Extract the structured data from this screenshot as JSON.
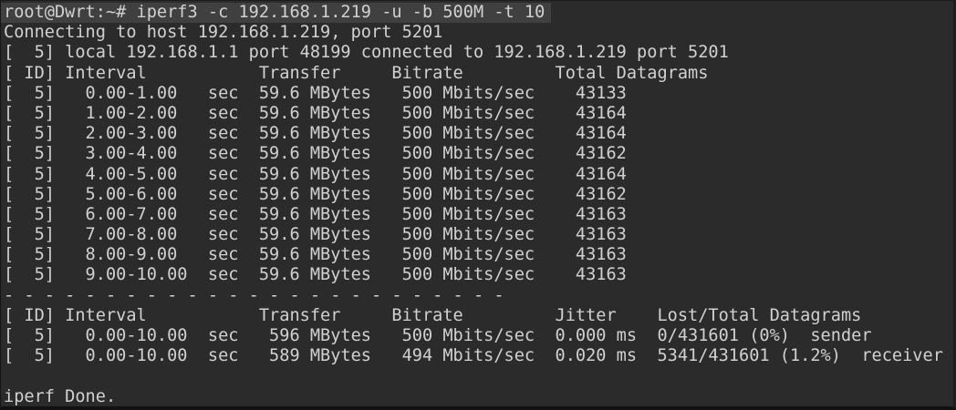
{
  "terminal": {
    "colors": {
      "background": "#2b2b2b",
      "foreground": "#d1d1d1",
      "command_highlight": "#404040"
    },
    "prompt": {
      "user_host": "root@Dwrt",
      "cwd": "~",
      "command": "iperf3 -c 192.168.1.219 -u -b 500M -t 10"
    },
    "lines": [
      "root@Dwrt:~# iperf3 -c 192.168.1.219 -u -b 500M -t 10",
      "Connecting to host 192.168.1.219, port 5201",
      "[  5] local 192.168.1.1 port 48199 connected to 192.168.1.219 port 5201",
      "[ ID] Interval           Transfer     Bitrate         Total Datagrams",
      "[  5]   0.00-1.00   sec  59.6 MBytes   500 Mbits/sec    43133",
      "[  5]   1.00-2.00   sec  59.6 MBytes   500 Mbits/sec    43164",
      "[  5]   2.00-3.00   sec  59.6 MBytes   500 Mbits/sec    43164",
      "[  5]   3.00-4.00   sec  59.6 MBytes   500 Mbits/sec    43162",
      "[  5]   4.00-5.00   sec  59.6 MBytes   500 Mbits/sec    43164",
      "[  5]   5.00-6.00   sec  59.6 MBytes   500 Mbits/sec    43162",
      "[  5]   6.00-7.00   sec  59.6 MBytes   500 Mbits/sec    43163",
      "[  5]   7.00-8.00   sec  59.6 MBytes   500 Mbits/sec    43163",
      "[  5]   8.00-9.00   sec  59.6 MBytes   500 Mbits/sec    43163",
      "[  5]   9.00-10.00  sec  59.6 MBytes   500 Mbits/sec    43163",
      "- - - - - - - - - - - - - - - - - - - - - - - - -",
      "[ ID] Interval           Transfer     Bitrate         Jitter    Lost/Total Datagrams",
      "[  5]   0.00-10.00  sec   596 MBytes   500 Mbits/sec  0.000 ms  0/431601 (0%)  sender",
      "[  5]   0.00-10.00  sec   589 MBytes   494 Mbits/sec  0.020 ms  5341/431601 (1.2%)  receiver",
      "",
      "iperf Done."
    ],
    "interval_report": {
      "columns": [
        "ID",
        "Interval",
        "Transfer",
        "Bitrate",
        "Total Datagrams"
      ],
      "rows": [
        {
          "id": 5,
          "interval": "0.00-1.00",
          "unit": "sec",
          "transfer": "59.6 MBytes",
          "bitrate": "500 Mbits/sec",
          "datagrams": 43133
        },
        {
          "id": 5,
          "interval": "1.00-2.00",
          "unit": "sec",
          "transfer": "59.6 MBytes",
          "bitrate": "500 Mbits/sec",
          "datagrams": 43164
        },
        {
          "id": 5,
          "interval": "2.00-3.00",
          "unit": "sec",
          "transfer": "59.6 MBytes",
          "bitrate": "500 Mbits/sec",
          "datagrams": 43164
        },
        {
          "id": 5,
          "interval": "3.00-4.00",
          "unit": "sec",
          "transfer": "59.6 MBytes",
          "bitrate": "500 Mbits/sec",
          "datagrams": 43162
        },
        {
          "id": 5,
          "interval": "4.00-5.00",
          "unit": "sec",
          "transfer": "59.6 MBytes",
          "bitrate": "500 Mbits/sec",
          "datagrams": 43164
        },
        {
          "id": 5,
          "interval": "5.00-6.00",
          "unit": "sec",
          "transfer": "59.6 MBytes",
          "bitrate": "500 Mbits/sec",
          "datagrams": 43162
        },
        {
          "id": 5,
          "interval": "6.00-7.00",
          "unit": "sec",
          "transfer": "59.6 MBytes",
          "bitrate": "500 Mbits/sec",
          "datagrams": 43163
        },
        {
          "id": 5,
          "interval": "7.00-8.00",
          "unit": "sec",
          "transfer": "59.6 MBytes",
          "bitrate": "500 Mbits/sec",
          "datagrams": 43163
        },
        {
          "id": 5,
          "interval": "8.00-9.00",
          "unit": "sec",
          "transfer": "59.6 MBytes",
          "bitrate": "500 Mbits/sec",
          "datagrams": 43163
        },
        {
          "id": 5,
          "interval": "9.00-10.00",
          "unit": "sec",
          "transfer": "59.6 MBytes",
          "bitrate": "500 Mbits/sec",
          "datagrams": 43163
        }
      ]
    },
    "summary_report": {
      "columns": [
        "ID",
        "Interval",
        "Transfer",
        "Bitrate",
        "Jitter",
        "Lost/Total Datagrams"
      ],
      "rows": [
        {
          "id": 5,
          "interval": "0.00-10.00",
          "unit": "sec",
          "transfer": "596 MBytes",
          "bitrate": "500 Mbits/sec",
          "jitter": "0.000 ms",
          "lost_total": "0/431601 (0%)",
          "role": "sender"
        },
        {
          "id": 5,
          "interval": "0.00-10.00",
          "unit": "sec",
          "transfer": "589 MBytes",
          "bitrate": "494 Mbits/sec",
          "jitter": "0.020 ms",
          "lost_total": "5341/431601 (1.2%)",
          "role": "receiver"
        }
      ]
    },
    "done_message": "iperf Done."
  }
}
